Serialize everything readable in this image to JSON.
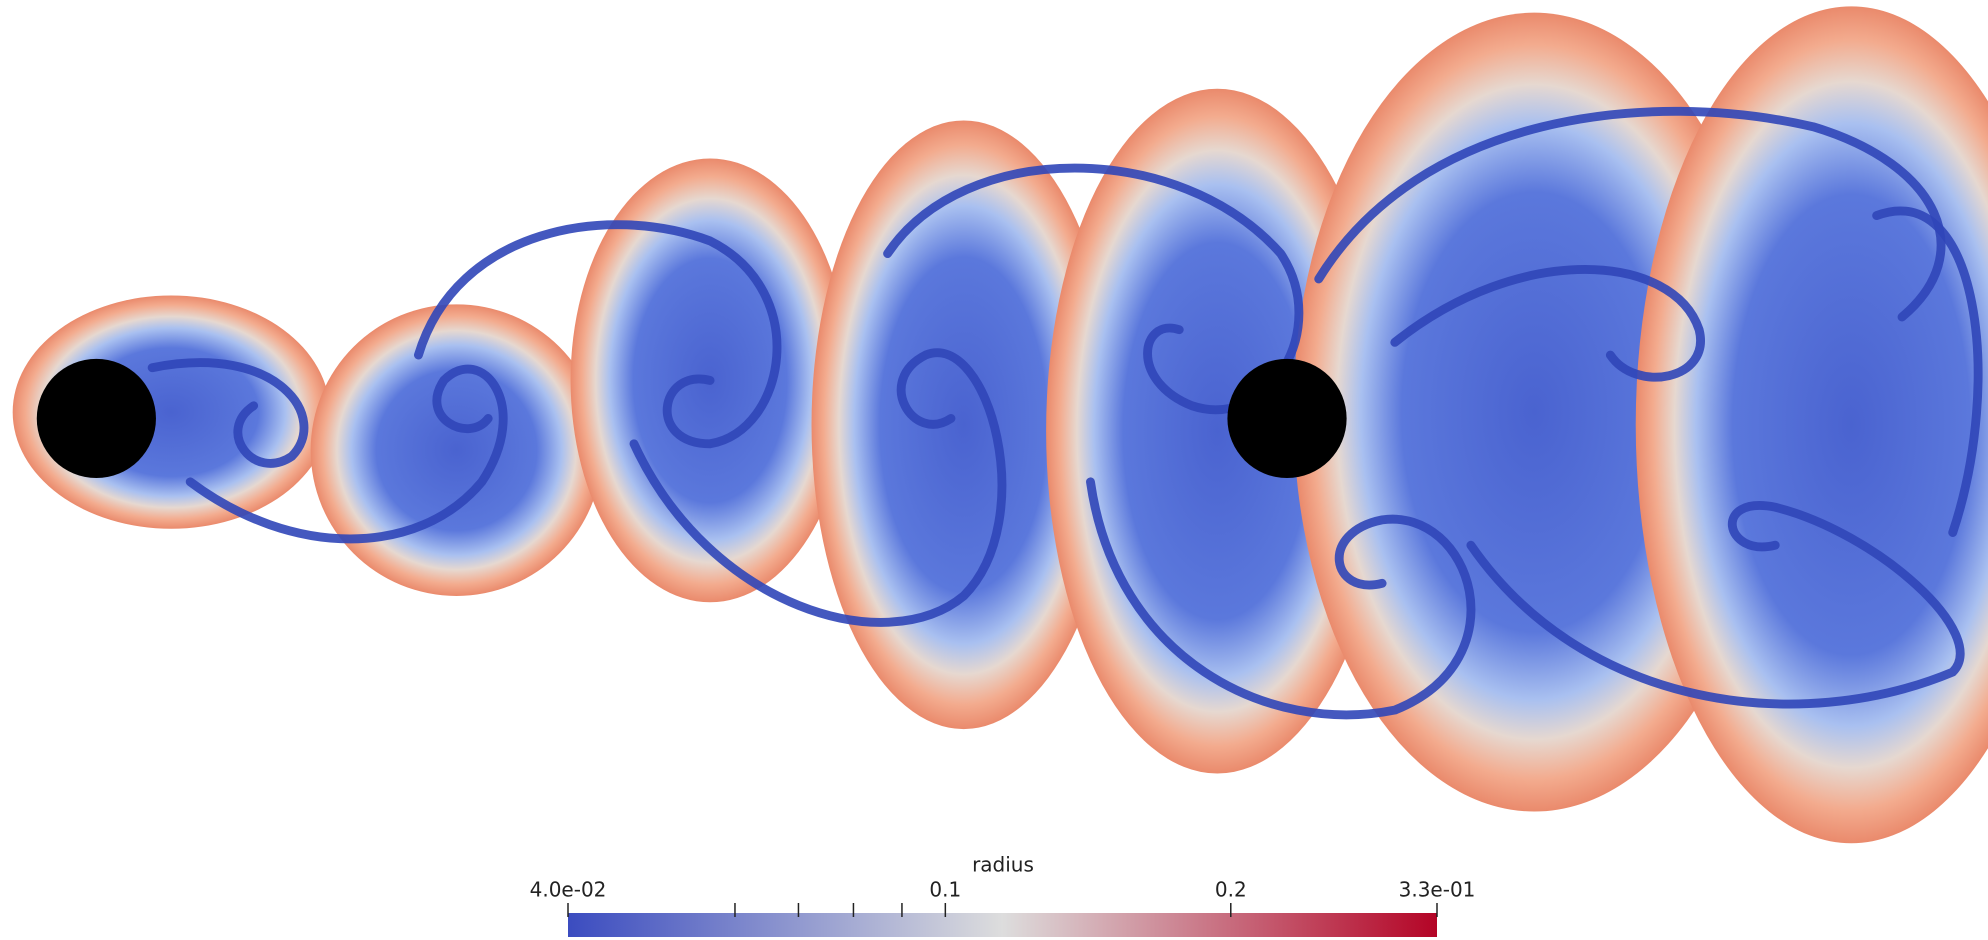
{
  "chart_data": {
    "type": "colorbar",
    "title": "radius",
    "log_scale": true,
    "clim": [
      0.04,
      0.33
    ],
    "colors": [
      "#3b4cc0",
      "#dddddd",
      "#b40426"
    ],
    "ticks": [
      {
        "value": 0.04,
        "label": "4.0e-02"
      },
      0.1,
      0.2,
      {
        "value": 0.33,
        "label": "3.3e-01"
      }
    ],
    "minor_ticks": [
      0.06,
      0.07,
      0.08,
      0.09
    ]
  }
}
